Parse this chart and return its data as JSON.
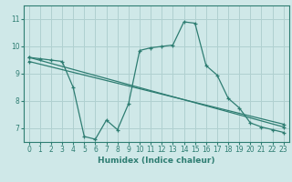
{
  "xlabel": "Humidex (Indice chaleur)",
  "bg_color": "#cfe8e8",
  "grid_color": "#b0d0d0",
  "line_color": "#2e7d72",
  "xlim": [
    -0.5,
    23.5
  ],
  "ylim": [
    6.5,
    11.5
  ],
  "yticks": [
    7,
    8,
    9,
    10,
    11
  ],
  "xticks": [
    0,
    1,
    2,
    3,
    4,
    5,
    6,
    7,
    8,
    9,
    10,
    11,
    12,
    13,
    14,
    15,
    16,
    17,
    18,
    19,
    20,
    21,
    22,
    23
  ],
  "zigzag_x": [
    0,
    1,
    2,
    3,
    4,
    5,
    6,
    7,
    8,
    9,
    10,
    11,
    12,
    13,
    14,
    15,
    16,
    17,
    18,
    19,
    20,
    21,
    22,
    23
  ],
  "zigzag_y": [
    9.6,
    9.55,
    9.5,
    9.45,
    8.5,
    6.7,
    6.6,
    7.3,
    6.95,
    7.9,
    9.85,
    9.95,
    10.0,
    10.05,
    10.9,
    10.85,
    9.3,
    8.95,
    8.1,
    7.75,
    7.2,
    7.05,
    6.95,
    6.85
  ],
  "line2_x": [
    0,
    23
  ],
  "line2_y": [
    9.6,
    7.05
  ],
  "line3_x": [
    0,
    23
  ],
  "line3_y": [
    9.45,
    7.15
  ]
}
